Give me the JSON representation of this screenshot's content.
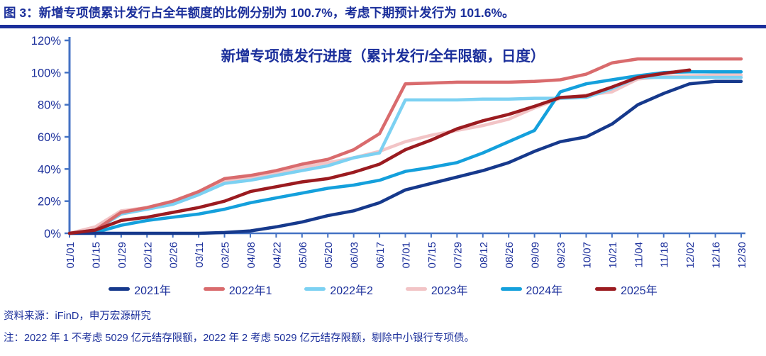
{
  "header": {
    "title": "图 3：新增专项债累计发行占全年额度的比例分别为 100.7%，考虑下期预计发行为 101.6%。"
  },
  "colors": {
    "text_navy": "#1B2F9B",
    "axis_blue": "#4472C4",
    "series_2021": "#16398C",
    "series_2022_1": "#D96B6D",
    "series_2022_2": "#7CD1F2",
    "series_2023": "#F2C4C6",
    "series_2024": "#14A0DC",
    "series_2025": "#9B1B20"
  },
  "chart_data": {
    "type": "line",
    "title": "新增专项债发行进度（累计发行/全年限额，日度）",
    "xlabel": "",
    "ylabel": "",
    "ylim": [
      0,
      120
    ],
    "ytick_step": 20,
    "ytick_labels": [
      "0%",
      "20%",
      "40%",
      "60%",
      "80%",
      "100%",
      "120%"
    ],
    "grid": false,
    "legend_position": "bottom",
    "categories": [
      "01/01",
      "01/15",
      "01/29",
      "02/12",
      "02/26",
      "03/11",
      "03/25",
      "04/08",
      "04/22",
      "05/06",
      "05/20",
      "06/03",
      "06/17",
      "07/01",
      "07/15",
      "07/29",
      "08/12",
      "08/26",
      "09/09",
      "09/23",
      "10/07",
      "10/21",
      "11/04",
      "11/18",
      "12/02",
      "12/16",
      "12/30"
    ],
    "series": [
      {
        "name": "2021年",
        "color": "#16398C",
        "values": [
          0,
          0,
          0,
          0,
          0,
          0,
          0.5,
          1.5,
          4,
          7,
          11,
          14,
          19,
          27,
          31,
          35,
          39,
          44,
          51,
          57,
          60,
          68,
          80,
          87,
          93,
          94.5,
          94.5
        ]
      },
      {
        "name": "2022年1",
        "color": "#D96B6D",
        "values": [
          0,
          2,
          13,
          16,
          20,
          26,
          34,
          36,
          39,
          43,
          46,
          52,
          62,
          93,
          93.5,
          94,
          94,
          94,
          94.5,
          95.5,
          99,
          106,
          108.5,
          108.5,
          108.5,
          108.5,
          108.5
        ]
      },
      {
        "name": "2022年2",
        "color": "#7CD1F2",
        "values": [
          0,
          2,
          12,
          15,
          18,
          24,
          31,
          33,
          36,
          39,
          42,
          47,
          50,
          83,
          83,
          83,
          83.5,
          83.5,
          84,
          84,
          84.5,
          90,
          97,
          97,
          97,
          97,
          97
        ]
      },
      {
        "name": "2023年",
        "color": "#F2C4C6",
        "values": [
          0,
          4,
          14,
          16,
          19,
          25,
          32,
          35,
          37,
          41,
          44,
          47,
          51,
          57,
          61,
          64,
          67,
          71,
          78,
          84,
          86,
          88,
          96,
          97.5,
          98,
          98.5,
          98.5
        ]
      },
      {
        "name": "2024年",
        "color": "#14A0DC",
        "values": [
          0,
          0.5,
          5,
          8,
          10,
          12,
          15,
          19,
          22,
          25,
          28,
          30,
          33,
          38.5,
          41,
          44,
          50,
          57,
          64,
          88,
          93,
          95.5,
          98,
          100,
          100.5,
          100.5,
          100.5
        ]
      },
      {
        "name": "2025年",
        "color": "#9B1B20",
        "values": [
          0,
          2,
          8,
          10,
          13,
          16,
          20,
          26,
          29,
          32,
          34,
          38,
          43,
          52,
          58,
          65,
          70,
          74,
          79,
          84.5,
          85.5,
          91,
          97,
          99.5,
          101.6,
          null,
          null
        ]
      }
    ]
  },
  "footer": {
    "source": "资料来源：iFinD，申万宏源研究",
    "note": "注：2022 年 1 不考虑 5029 亿元结存限额，2022 年 2 考虑 5029 亿元结存限额，剔除中小银行专项债。"
  }
}
